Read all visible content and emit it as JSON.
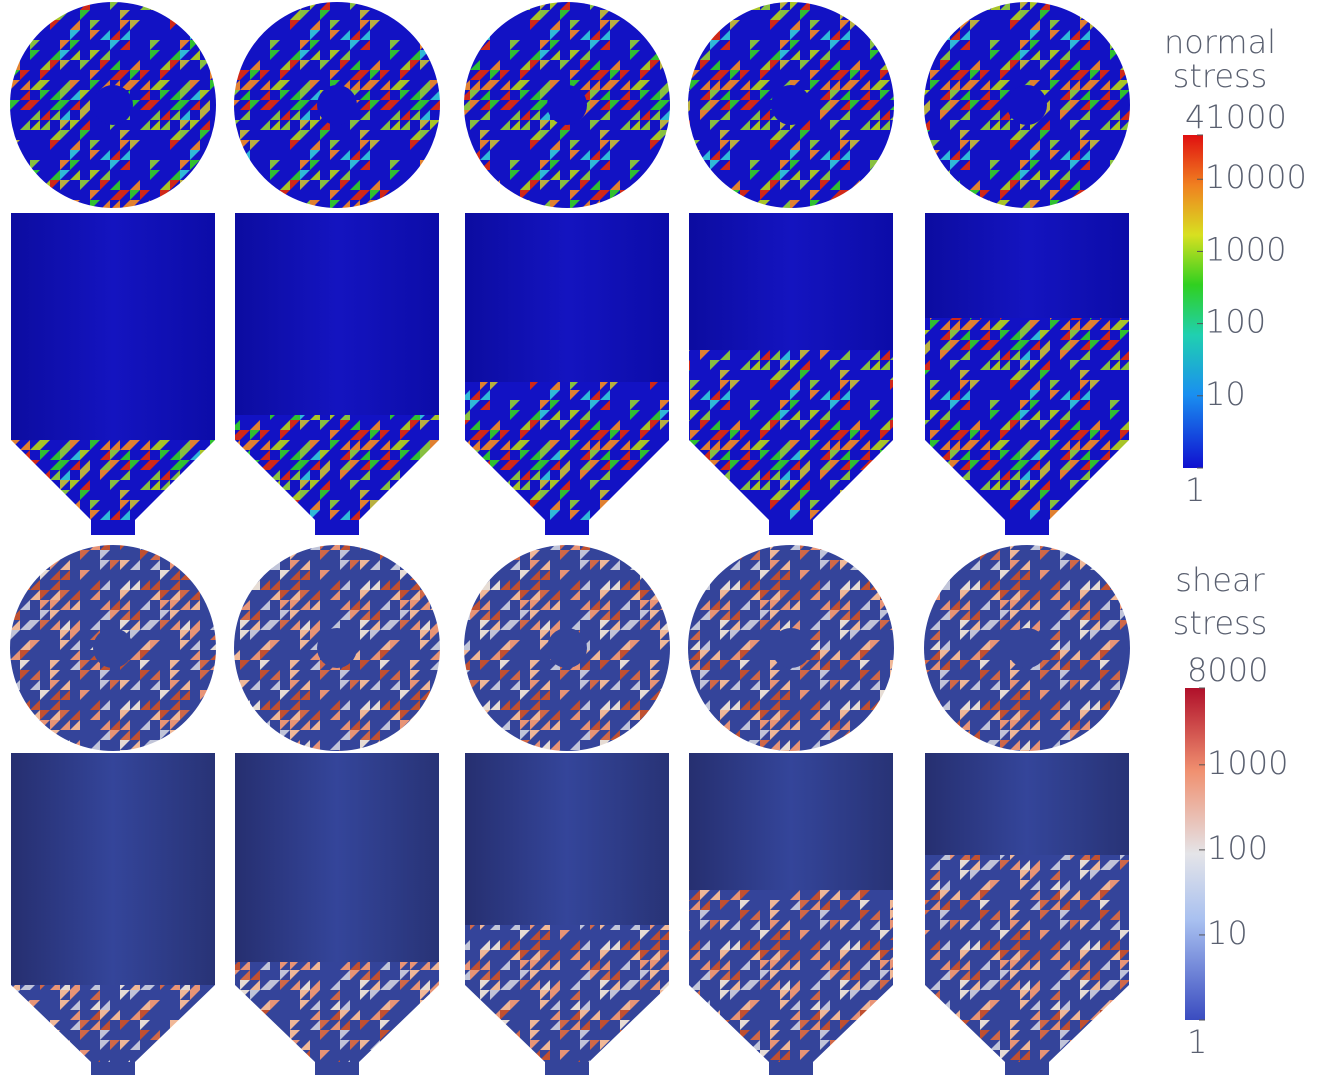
{
  "legends": [
    {
      "title": [
        "normal",
        "stress"
      ],
      "scale": "log",
      "ticks": [
        41000,
        10000,
        1000,
        100,
        10,
        1
      ]
    },
    {
      "title": [
        "shear",
        "stress"
      ],
      "scale": "log",
      "ticks": [
        8000,
        1000,
        100,
        10,
        1
      ]
    }
  ]
}
